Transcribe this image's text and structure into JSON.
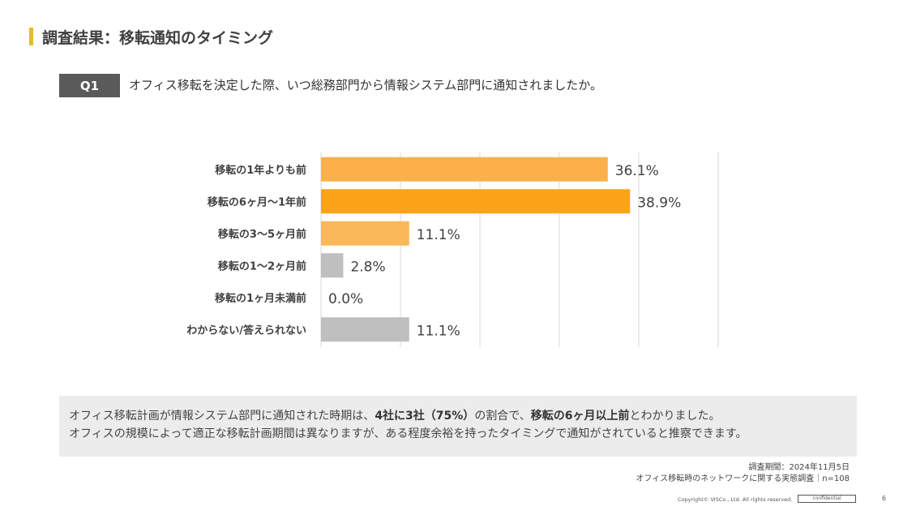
{
  "header": {
    "title": "調査結果：移転通知のタイミング",
    "accent_color": "#e8b92e"
  },
  "question": {
    "badge": "Q1",
    "text": "オフィス移転を決定した際、いつ総務部門から情報システム部門に通知されましたか。"
  },
  "chart_data": {
    "type": "bar",
    "orientation": "horizontal",
    "title": "",
    "categories": [
      "移転の1年よりも前",
      "移転の6ヶ月〜1年前",
      "移転の3〜5ヶ月前",
      "移転の1〜2ヶ月前",
      "移転の1ヶ月未満前",
      "わからない/答えられない"
    ],
    "values": [
      36.1,
      38.9,
      11.1,
      2.8,
      0.0,
      11.1
    ],
    "value_labels": [
      "36.1%",
      "38.9%",
      "11.1%",
      "2.8%",
      "0.0%",
      "11.1%"
    ],
    "colors": [
      "#fbb04a",
      "#fca31a",
      "#fbb85a",
      "#bfbfbf",
      "#bfbfbf",
      "#bfbfbf"
    ],
    "xlim": [
      0,
      50
    ],
    "grid": true,
    "xlabel": "",
    "ylabel": ""
  },
  "summary": {
    "line1_a": "オフィス移転計画が情報システム部門に通知された時期は、",
    "line1_b": "4社に3社（75%）",
    "line1_c": "の割合で、",
    "line1_d": "移転の6ヶ月以上前",
    "line1_e": "とわかりました。",
    "line2": "オフィスの規模によって適正な移転計画期間は異なりますが、ある程度余裕を持ったタイミングで通知がされていると推察できます。"
  },
  "survey": {
    "period": "調査期間：2024年11月5日",
    "name": "オフィス移転時のネットワークに関する実態調査｜n=108"
  },
  "footer": {
    "copyright": "Copyright© VISCo., Ltd. All rights reserved.",
    "confidential": "confidential",
    "page": "6"
  }
}
